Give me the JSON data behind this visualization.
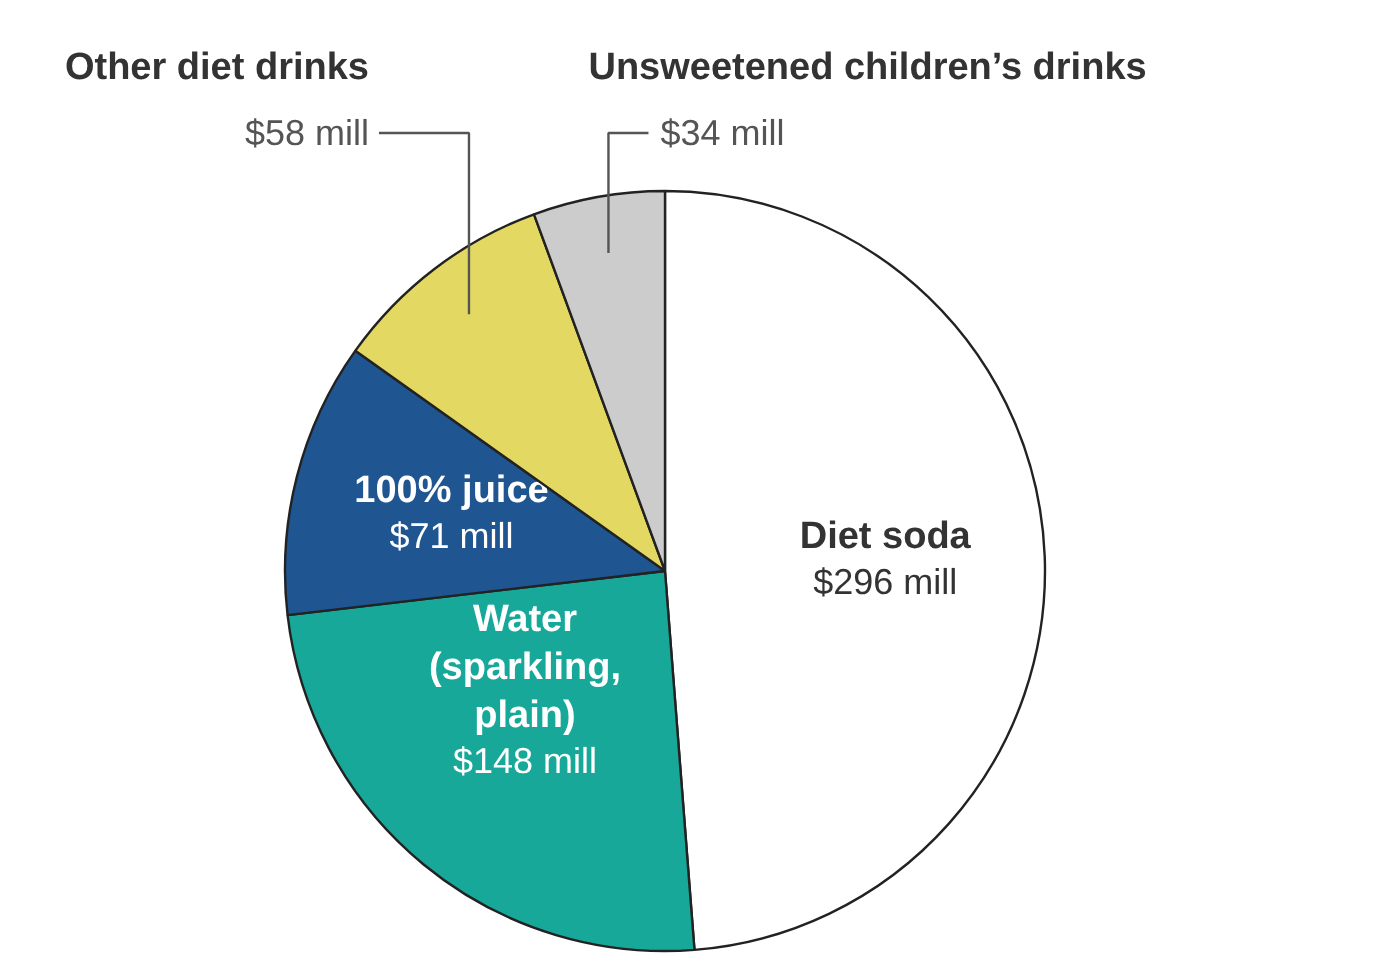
{
  "chart_data": {
    "type": "pie",
    "categories": [
      "Diet soda",
      "Water\n(sparkling,\nplain)",
      "100% juice",
      "Other diet drinks",
      "Unsweetened children’s drinks"
    ],
    "values": [
      296,
      148,
      71,
      58,
      34
    ],
    "colors": [
      "#ffffff",
      "#17a89a",
      "#1f5591",
      "#e3d962",
      "#cccccc"
    ],
    "value_labels": [
      "$296 mill",
      "$148 mill",
      "$71 mill",
      "$58 mill",
      "$34 mill"
    ]
  }
}
